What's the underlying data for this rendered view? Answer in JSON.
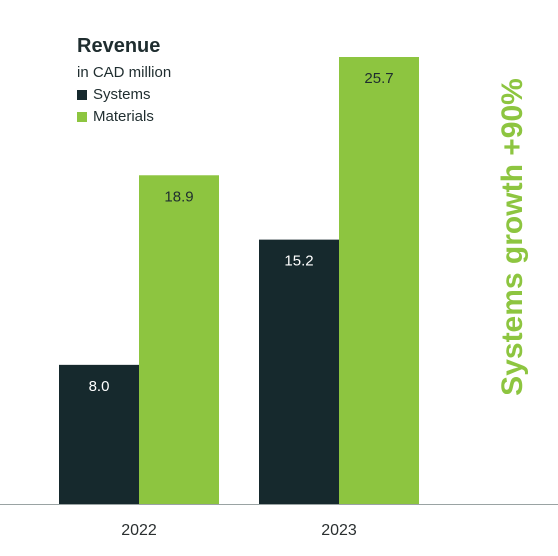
{
  "chart_data": {
    "type": "bar",
    "title": "Revenue",
    "subtitle": "in CAD million",
    "categories": [
      "2022",
      "2023"
    ],
    "series": [
      {
        "name": "Systems",
        "color": "#16292d",
        "values": [
          8.0,
          15.2
        ]
      },
      {
        "name": "Materials",
        "color": "#8dc540",
        "values": [
          18.9,
          25.7
        ]
      }
    ],
    "xlabel": "",
    "ylabel": "",
    "ylim": [
      0,
      25.7
    ],
    "grid": false,
    "legend_position": "top-left",
    "annotation": {
      "text": "Systems growth +90%",
      "color": "#8dc540"
    }
  }
}
